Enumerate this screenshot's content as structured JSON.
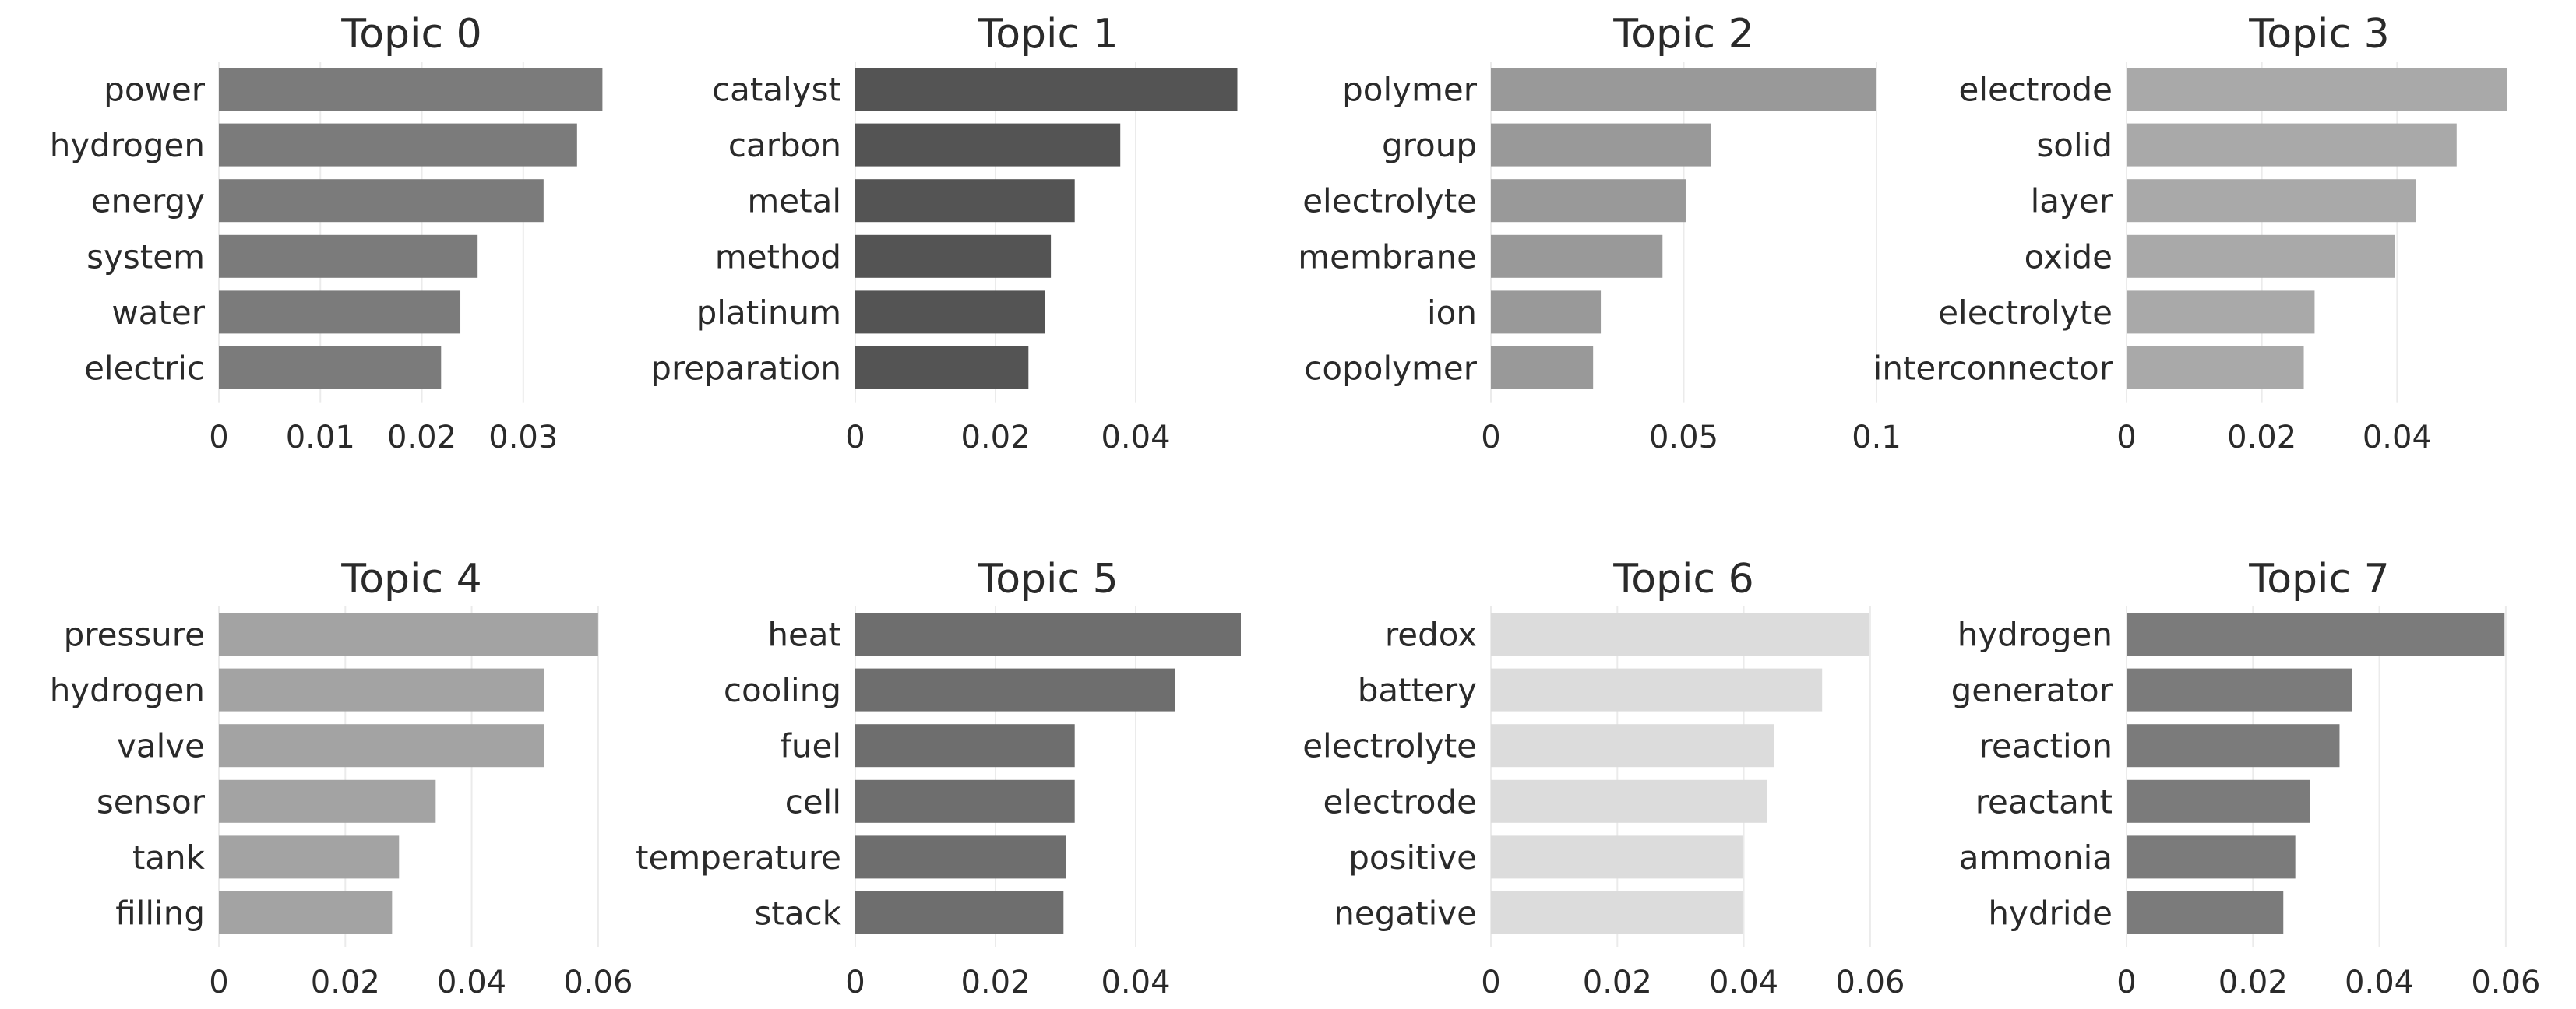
{
  "chart_data": [
    {
      "type": "bar",
      "title": "Topic 0",
      "color": "#7b7b7b",
      "categories": [
        "power",
        "hydrogen",
        "energy",
        "system",
        "water",
        "electric"
      ],
      "values": [
        0.0378,
        0.0353,
        0.032,
        0.0255,
        0.0238,
        0.0219
      ],
      "xlim": [
        0,
        0.038
      ],
      "xticks": [
        0,
        0.01,
        0.02,
        0.03
      ],
      "xtick_labels": [
        "0",
        "0.01",
        "0.02",
        "0.03"
      ]
    },
    {
      "type": "bar",
      "title": "Topic 1",
      "color": "#545454",
      "categories": [
        "catalyst",
        "carbon",
        "metal",
        "method",
        "platinum",
        "preparation"
      ],
      "values": [
        0.0545,
        0.0378,
        0.0313,
        0.0279,
        0.0271,
        0.0247
      ],
      "xlim": [
        0,
        0.055
      ],
      "xticks": [
        0,
        0.02,
        0.04
      ],
      "xtick_labels": [
        "0",
        "0.02",
        "0.04"
      ]
    },
    {
      "type": "bar",
      "title": "Topic 2",
      "color": "#999999",
      "categories": [
        "polymer",
        "group",
        "electrolyte",
        "membrane",
        "ion",
        "copolymer"
      ],
      "values": [
        0.1,
        0.057,
        0.0505,
        0.0445,
        0.0285,
        0.0265
      ],
      "xlim": [
        0,
        0.1
      ],
      "xticks": [
        0,
        0.05,
        0.1
      ],
      "xtick_labels": [
        "0",
        "0.05",
        "0.1"
      ]
    },
    {
      "type": "bar",
      "title": "Topic 3",
      "color": "#a9a9a9",
      "categories": [
        "electrode",
        "solid",
        "layer",
        "oxide",
        "electrolyte",
        "interconnector"
      ],
      "values": [
        0.0562,
        0.0488,
        0.0428,
        0.0397,
        0.0278,
        0.0262
      ],
      "xlim": [
        0,
        0.057
      ],
      "xticks": [
        0,
        0.02,
        0.04
      ],
      "xtick_labels": [
        "0",
        "0.02",
        "0.04"
      ]
    },
    {
      "type": "bar",
      "title": "Topic 4",
      "color": "#a3a3a3",
      "categories": [
        "pressure",
        "hydrogen",
        "valve",
        "sensor",
        "tank",
        "filling"
      ],
      "values": [
        0.06,
        0.0514,
        0.0514,
        0.0343,
        0.0285,
        0.0274
      ],
      "xlim": [
        0,
        0.061
      ],
      "xticks": [
        0,
        0.02,
        0.04,
        0.06
      ],
      "xtick_labels": [
        "0",
        "0.02",
        "0.04",
        "0.06"
      ]
    },
    {
      "type": "bar",
      "title": "Topic 5",
      "color": "#6e6e6e",
      "categories": [
        "heat",
        "cooling",
        "fuel",
        "cell",
        "temperature",
        "stack"
      ],
      "values": [
        0.055,
        0.0456,
        0.0313,
        0.0313,
        0.0301,
        0.0297
      ],
      "xlim": [
        0,
        0.055
      ],
      "xticks": [
        0,
        0.02,
        0.04
      ],
      "xtick_labels": [
        "0",
        "0.02",
        "0.04"
      ]
    },
    {
      "type": "bar",
      "title": "Topic 6",
      "color": "#dcdcdc",
      "categories": [
        "redox",
        "battery",
        "electrolyte",
        "electrode",
        "positive",
        "negative"
      ],
      "values": [
        0.0598,
        0.0524,
        0.0448,
        0.0437,
        0.0398,
        0.0398
      ],
      "xlim": [
        0,
        0.061
      ],
      "xticks": [
        0,
        0.02,
        0.04,
        0.06
      ],
      "xtick_labels": [
        "0",
        "0.02",
        "0.04",
        "0.06"
      ]
    },
    {
      "type": "bar",
      "title": "Topic 7",
      "color": "#7b7b7b",
      "categories": [
        "hydrogen",
        "generator",
        "reaction",
        "reactant",
        "ammonia",
        "hydride"
      ],
      "values": [
        0.0598,
        0.0357,
        0.0337,
        0.029,
        0.0267,
        0.0248
      ],
      "xlim": [
        0,
        0.061
      ],
      "xticks": [
        0,
        0.02,
        0.04,
        0.06
      ],
      "xtick_labels": [
        "0",
        "0.02",
        "0.04",
        "0.06"
      ]
    }
  ]
}
